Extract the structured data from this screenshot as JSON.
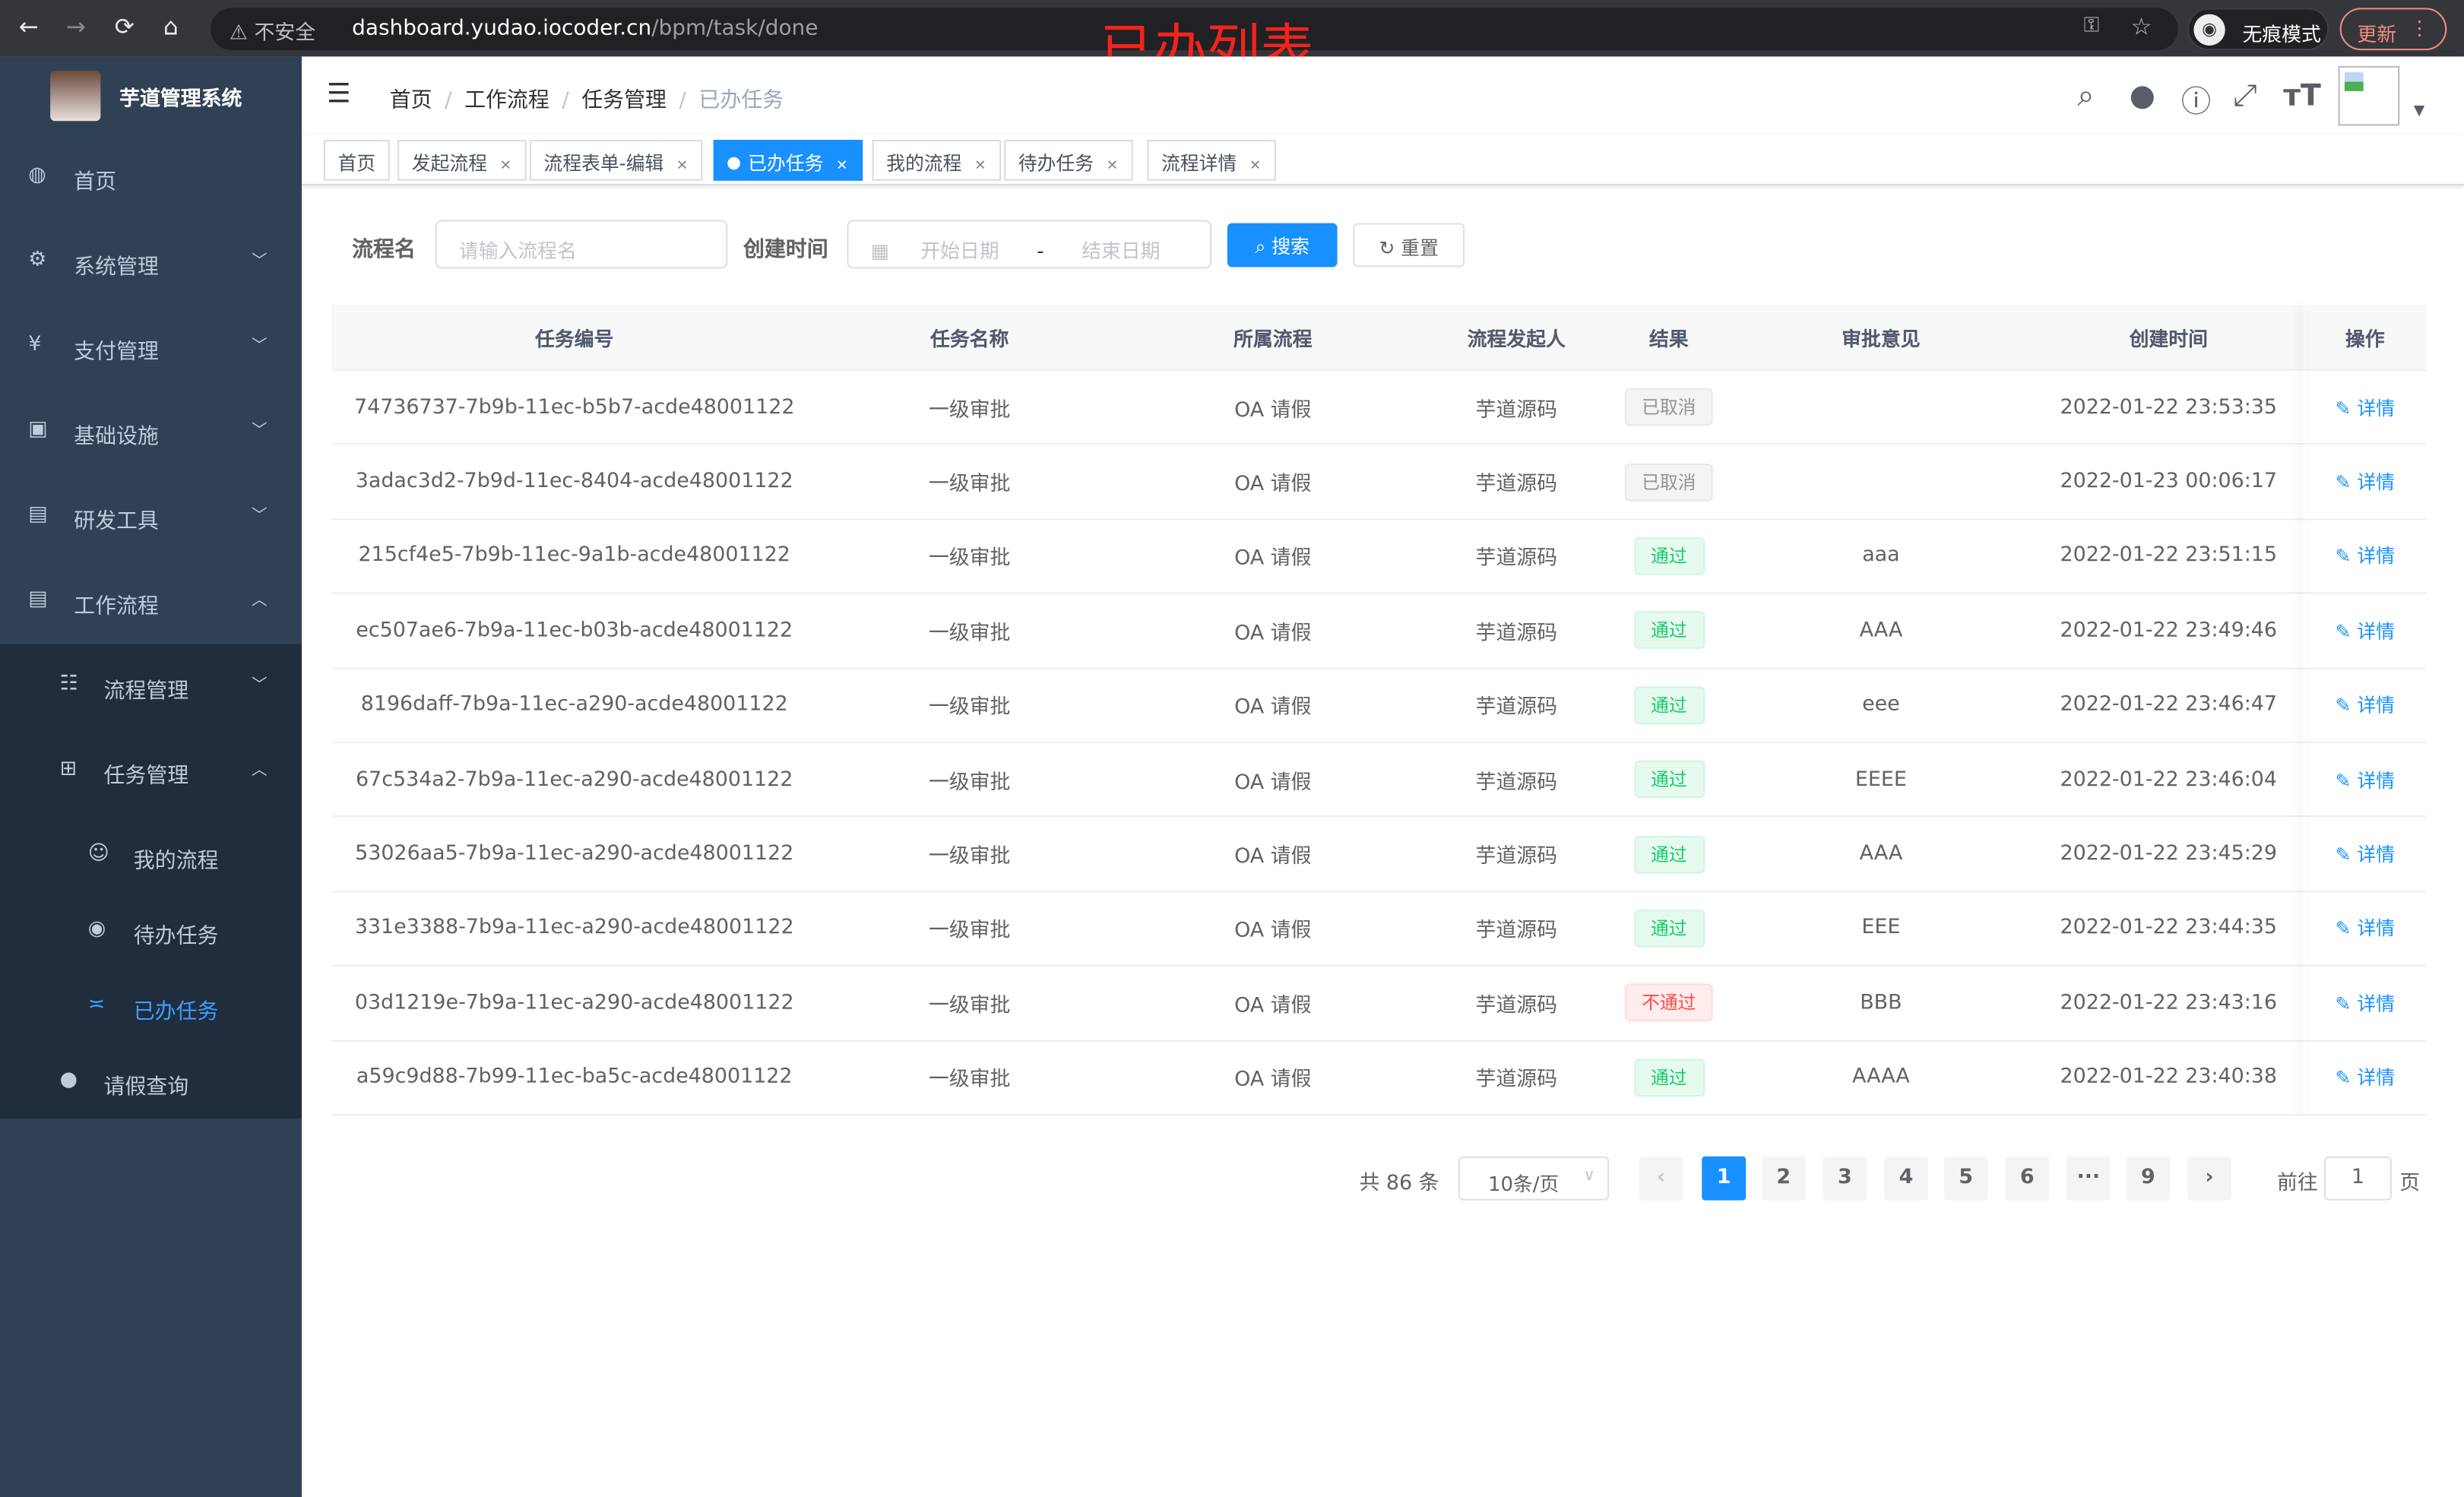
{
  "browser": {
    "back": "←",
    "forward": "→",
    "reload": "⟳",
    "home": "⌂",
    "insecure": "不安全",
    "url_host": "dashboard.yudao.iocoder.cn",
    "url_path": "/bpm/task/done",
    "incognito": "无痕模式",
    "update": "更新"
  },
  "annotation": "已办列表",
  "app": {
    "title": "芋道管理系统"
  },
  "sidebar": {
    "items": [
      {
        "label": "首页",
        "icon": "dashboard-icon"
      },
      {
        "label": "系统管理",
        "icon": "gear-icon"
      },
      {
        "label": "支付管理",
        "icon": "yen-icon"
      },
      {
        "label": "基础设施",
        "icon": "monitor-icon"
      },
      {
        "label": "研发工具",
        "icon": "toolbox-icon"
      },
      {
        "label": "工作流程",
        "icon": "toolbox-icon"
      }
    ],
    "sub": [
      {
        "label": "流程管理",
        "icon": "list-icon"
      },
      {
        "label": "任务管理",
        "icon": "tree-icon"
      },
      {
        "label": "我的流程",
        "icon": "user-circle-icon"
      },
      {
        "label": "待办任务",
        "icon": "eye-icon"
      },
      {
        "label": "已办任务",
        "icon": "done-icon"
      },
      {
        "label": "请假查询",
        "icon": "user-icon"
      }
    ]
  },
  "breadcrumb": [
    "首页",
    "工作流程",
    "任务管理",
    "已办任务"
  ],
  "tags": [
    "首页",
    "发起流程",
    "流程表单-编辑",
    "已办任务",
    "我的流程",
    "待办任务",
    "流程详情"
  ],
  "form": {
    "name_label": "流程名",
    "name_placeholder": "请输入流程名",
    "time_label": "创建时间",
    "start_placeholder": "开始日期",
    "sep": "-",
    "end_placeholder": "结束日期",
    "search": "搜索",
    "reset": "重置"
  },
  "table": {
    "headers": [
      "任务编号",
      "任务名称",
      "所属流程",
      "流程发起人",
      "结果",
      "审批意见",
      "创建时间",
      "操作"
    ],
    "rows": [
      [
        "74736737-7b9b-11ec-b5b7-acde48001122",
        "一级审批",
        "OA 请假",
        "芋道源码",
        "已取消",
        "",
        "2022-01-22 23:53:35",
        "详情"
      ],
      [
        "3adac3d2-7b9d-11ec-8404-acde48001122",
        "一级审批",
        "OA 请假",
        "芋道源码",
        "已取消",
        "",
        "2022-01-23 00:06:17",
        "详情"
      ],
      [
        "215cf4e5-7b9b-11ec-9a1b-acde48001122",
        "一级审批",
        "OA 请假",
        "芋道源码",
        "通过",
        "aaa",
        "2022-01-22 23:51:15",
        "详情"
      ],
      [
        "ec507ae6-7b9a-11ec-b03b-acde48001122",
        "一级审批",
        "OA 请假",
        "芋道源码",
        "通过",
        "AAA",
        "2022-01-22 23:49:46",
        "详情"
      ],
      [
        "8196daff-7b9a-11ec-a290-acde48001122",
        "一级审批",
        "OA 请假",
        "芋道源码",
        "通过",
        "eee",
        "2022-01-22 23:46:47",
        "详情"
      ],
      [
        "67c534a2-7b9a-11ec-a290-acde48001122",
        "一级审批",
        "OA 请假",
        "芋道源码",
        "通过",
        "EEEE",
        "2022-01-22 23:46:04",
        "详情"
      ],
      [
        "53026aa5-7b9a-11ec-a290-acde48001122",
        "一级审批",
        "OA 请假",
        "芋道源码",
        "通过",
        "AAA",
        "2022-01-22 23:45:29",
        "详情"
      ],
      [
        "331e3388-7b9a-11ec-a290-acde48001122",
        "一级审批",
        "OA 请假",
        "芋道源码",
        "通过",
        "EEE",
        "2022-01-22 23:44:35",
        "详情"
      ],
      [
        "03d1219e-7b9a-11ec-a290-acde48001122",
        "一级审批",
        "OA 请假",
        "芋道源码",
        "不通过",
        "BBB",
        "2022-01-22 23:43:16",
        "详情"
      ],
      [
        "a59c9d88-7b99-11ec-ba5c-acde48001122",
        "一级审批",
        "OA 请假",
        "芋道源码",
        "通过",
        "AAAA",
        "2022-01-22 23:40:38",
        "详情"
      ]
    ]
  },
  "result_colors": {
    "已取消": [
      "#909399",
      "#f4f4f5",
      "#e9e9eb"
    ],
    "通过": [
      "#13ce66",
      "#e7faf0",
      "#d0f5e0"
    ],
    "不通过": [
      "#ff4949",
      "#ffeded",
      "#ffdbdb"
    ]
  },
  "pagination": {
    "total": "共 86 条",
    "page_size": "10条/页",
    "pages": [
      "1",
      "2",
      "3",
      "4",
      "5",
      "6",
      "···",
      "9"
    ],
    "current": "1",
    "goto_label": "前往",
    "goto_value": "1",
    "goto_suffix": "页"
  }
}
